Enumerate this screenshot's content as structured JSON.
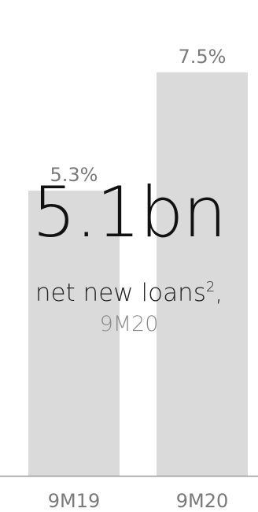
{
  "chart_data": {
    "type": "bar",
    "categories": [
      "9M19",
      "9M20"
    ],
    "values": [
      5.3,
      7.5
    ],
    "value_labels": [
      "5.3%",
      "7.5%"
    ],
    "ylim": [
      0,
      8.2
    ],
    "bar_color": "#dadada",
    "axis_color": "#9a9a9a",
    "label_color": "#7a7a7a"
  },
  "highlight": {
    "value": "5.1bn",
    "caption": "net new loans",
    "footnote_mark": "2",
    "caption_suffix": ",",
    "period": "9M20"
  }
}
